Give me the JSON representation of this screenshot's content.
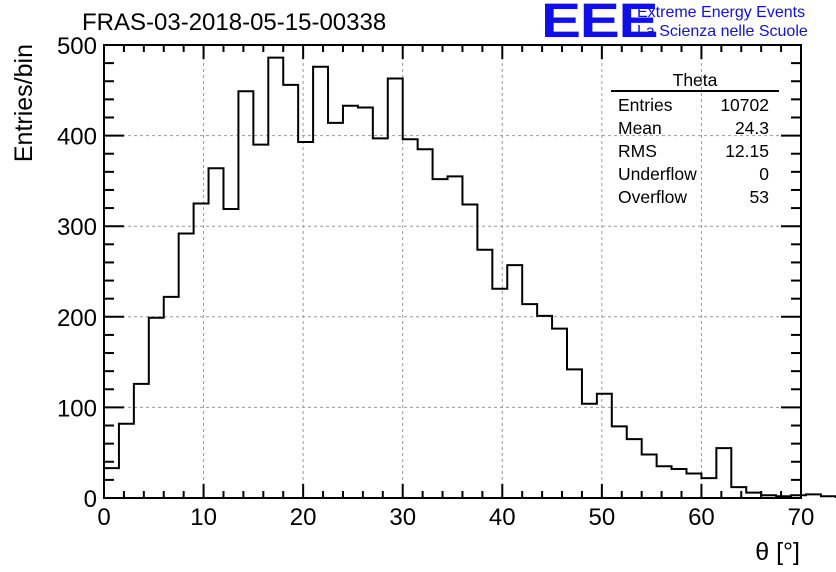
{
  "header": {
    "run_title": "FRAS-03-2018-05-15-00338",
    "logo_mark": "EEE",
    "logo_line1": "Extreme Energy Events",
    "logo_line2": "La Scienza nelle Scuole"
  },
  "stats_box": {
    "title": "Theta",
    "rows": [
      {
        "label": "Entries",
        "value": "10702"
      },
      {
        "label": "Mean",
        "value": "24.3"
      },
      {
        "label": "RMS",
        "value": "12.15"
      },
      {
        "label": "Underflow",
        "value": "0"
      },
      {
        "label": "Overflow",
        "value": "53"
      }
    ]
  },
  "colors": {
    "line": "#000000",
    "grid": "#9a9a9a",
    "logo": "#1010e6"
  },
  "chart_data": {
    "type": "histogram",
    "xlabel": "θ [°]",
    "ylabel": "Entries/bin",
    "xlim": [
      0,
      70
    ],
    "ylim": [
      0,
      500
    ],
    "xticks": [
      0,
      10,
      20,
      30,
      40,
      50,
      60,
      70
    ],
    "yticks": [
      0,
      100,
      200,
      300,
      400,
      500
    ],
    "grid": true,
    "bin_width": 1.5,
    "bin_start": 0,
    "values": [
      33,
      82,
      126,
      199,
      222,
      292,
      325,
      364,
      319,
      449,
      390,
      486,
      456,
      393,
      476,
      414,
      433,
      431,
      397,
      463,
      396,
      385,
      352,
      355,
      324,
      274,
      231,
      257,
      214,
      201,
      187,
      142,
      104,
      115,
      79,
      65,
      48,
      35,
      32,
      27,
      22,
      55,
      12,
      6,
      3,
      2,
      3,
      4,
      2
    ]
  }
}
